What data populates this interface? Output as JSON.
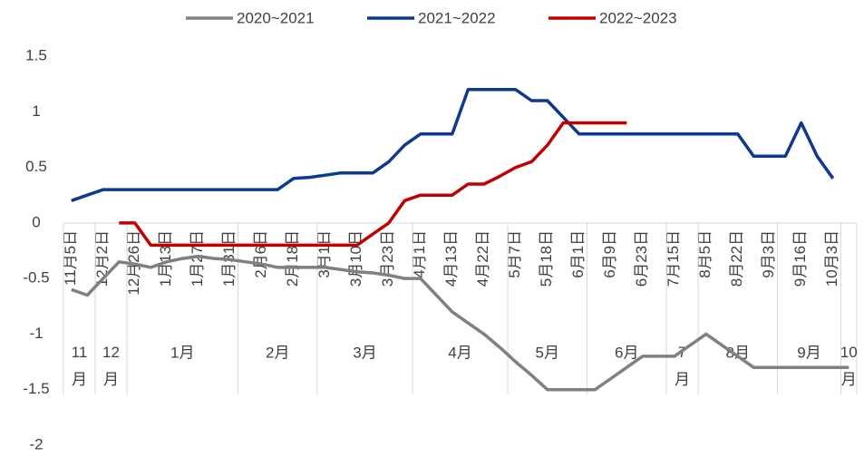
{
  "chart_data": {
    "type": "line",
    "categories": [
      "11月5日",
      null,
      "12月2日",
      null,
      "12月26日",
      null,
      "1月13日",
      null,
      "1月27日",
      null,
      "1月31日",
      null,
      "2月6日",
      null,
      "2月18日",
      null,
      "3月1日",
      null,
      "3月10日",
      null,
      "3月23日",
      null,
      "4月1日",
      null,
      "4月13日",
      null,
      "4月22日",
      null,
      "5月7日",
      null,
      "5月18日",
      null,
      "6月1日",
      null,
      "6月9日",
      null,
      "6月23日",
      null,
      "7月15日",
      null,
      "8月5日",
      null,
      "8月22日",
      null,
      "9月3日",
      null,
      "9月16日",
      null,
      "10月3日",
      null
    ],
    "month_groups": [
      {
        "label": "11月",
        "count": 2
      },
      {
        "label": "12月",
        "count": 2
      },
      {
        "label": "1月",
        "count": 7
      },
      {
        "label": "2月",
        "count": 5
      },
      {
        "label": "3月",
        "count": 6
      },
      {
        "label": "4月",
        "count": 6
      },
      {
        "label": "5月",
        "count": 5
      },
      {
        "label": "6月",
        "count": 5
      },
      {
        "label": "7月",
        "count": 2
      },
      {
        "label": "8月",
        "count": 5
      },
      {
        "label": "9月",
        "count": 4
      },
      {
        "label": "10月",
        "count": 1
      }
    ],
    "series": [
      {
        "name": "2020~2021",
        "color": "#808080",
        "values": [
          -0.6,
          -0.65,
          -0.5,
          -0.35,
          -0.37,
          -0.4,
          -0.35,
          -0.32,
          -0.3,
          -0.32,
          -0.33,
          -0.35,
          -0.37,
          -0.4,
          -0.4,
          -0.4,
          -0.4,
          -0.42,
          -0.44,
          -0.45,
          -0.47,
          -0.5,
          -0.5,
          -0.65,
          -0.8,
          -0.9,
          -1.0,
          -1.12,
          -1.25,
          -1.37,
          -1.5,
          -1.5,
          -1.5,
          -1.5,
          -1.4,
          -1.3,
          -1.2,
          -1.2,
          -1.2,
          -1.1,
          -1.0,
          -1.1,
          -1.2,
          -1.3,
          -1.3,
          -1.3,
          -1.3,
          -1.3,
          -1.3,
          -1.3
        ]
      },
      {
        "name": "2021~2022",
        "color": "#0d3a8c",
        "values": [
          0.2,
          0.25,
          0.3,
          0.3,
          0.3,
          0.3,
          0.3,
          0.3,
          0.3,
          0.3,
          0.3,
          0.3,
          0.3,
          0.3,
          0.4,
          0.41,
          0.43,
          0.45,
          0.45,
          0.45,
          0.55,
          0.7,
          0.8,
          0.8,
          0.8,
          1.2,
          1.2,
          1.2,
          1.2,
          1.1,
          1.1,
          0.95,
          0.8,
          0.8,
          0.8,
          0.8,
          0.8,
          0.8,
          0.8,
          0.8,
          0.8,
          0.8,
          0.8,
          0.6,
          0.6,
          0.6,
          0.9,
          0.6,
          0.4,
          null
        ]
      },
      {
        "name": "2022~2023",
        "color": "#c00000",
        "values": [
          null,
          null,
          null,
          0,
          0,
          -0.2,
          -0.2,
          -0.2,
          -0.2,
          -0.2,
          -0.2,
          -0.2,
          -0.2,
          -0.2,
          -0.2,
          -0.2,
          -0.2,
          -0.2,
          -0.2,
          -0.1,
          0,
          0.2,
          0.25,
          0.25,
          0.25,
          0.35,
          0.35,
          0.42,
          0.5,
          0.55,
          0.7,
          0.9,
          0.9,
          0.9,
          0.9,
          0.9,
          null,
          null,
          null,
          null,
          null,
          null,
          null,
          null,
          null,
          null,
          null,
          null,
          null,
          null
        ]
      }
    ],
    "ylim": [
      -2,
      1.5
    ],
    "yticks": [
      -2,
      -1.5,
      -1,
      -0.5,
      0,
      0.5,
      1,
      1.5
    ],
    "legend": "top"
  }
}
